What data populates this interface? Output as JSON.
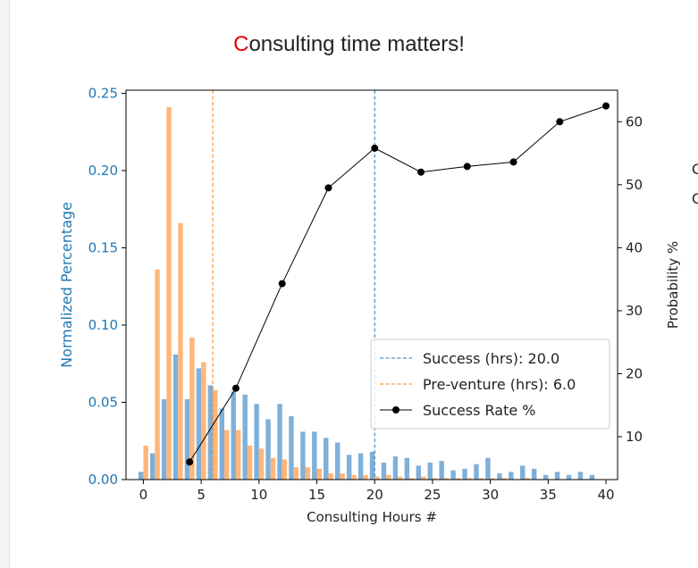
{
  "header": {
    "title_first_letter": "C",
    "title_rest": "onsulting time matters!",
    "clipped_text": [
      "C",
      "C"
    ]
  },
  "colors": {
    "success": "#7fb0d9",
    "preventure": "#ffb67a",
    "success_line": "#1f77b4",
    "preventure_line": "#ff7f0e",
    "rate": "#000000",
    "left_axis": "#1f77b4",
    "title_accent": "#e60000"
  },
  "chart_data": {
    "type": "bar",
    "title": "Consulting time matters!",
    "xlabel": "Consulting Hours #",
    "ylabel": "Normalized Percentage",
    "y2label": "Probability %",
    "xlim": [
      -1.5,
      41
    ],
    "ylim": [
      0,
      0.252
    ],
    "y2lim": [
      3.2,
      65
    ],
    "xticks": [
      "0",
      "5",
      "10",
      "15",
      "20",
      "25",
      "30",
      "35",
      "40"
    ],
    "yticks": [
      "0.00",
      "0.05",
      "0.10",
      "0.15",
      "0.20",
      "0.25"
    ],
    "y2ticks": [
      "10",
      "20",
      "30",
      "40",
      "50",
      "60"
    ],
    "grid": false,
    "legend_position": "lower-right",
    "legend": [
      "Success (hrs): 20.0",
      "Pre-venture (hrs): 6.0",
      "Success Rate %"
    ],
    "series": [
      {
        "name": "Success",
        "kind": "bar",
        "x": [
          0,
          1,
          2,
          3,
          4,
          5,
          6,
          7,
          8,
          9,
          10,
          11,
          12,
          13,
          14,
          15,
          16,
          17,
          18,
          19,
          20,
          21,
          22,
          23,
          24,
          25,
          26,
          27,
          28,
          29,
          30,
          31,
          32,
          33,
          34,
          35,
          36,
          37,
          38,
          39
        ],
        "values": [
          0.005,
          0.017,
          0.052,
          0.081,
          0.052,
          0.072,
          0.061,
          0.046,
          0.057,
          0.055,
          0.049,
          0.039,
          0.049,
          0.041,
          0.031,
          0.031,
          0.027,
          0.024,
          0.016,
          0.017,
          0.018,
          0.011,
          0.015,
          0.014,
          0.009,
          0.011,
          0.012,
          0.006,
          0.007,
          0.01,
          0.014,
          0.004,
          0.005,
          0.009,
          0.007,
          0.003,
          0.005,
          0.003,
          0.005,
          0.003
        ]
      },
      {
        "name": "Pre-venture",
        "kind": "bar",
        "x": [
          0,
          1,
          2,
          3,
          4,
          5,
          6,
          7,
          8,
          9,
          10,
          11,
          12,
          13,
          14,
          15,
          16,
          17,
          18,
          19,
          20,
          21,
          22,
          23,
          24,
          25,
          26,
          27,
          28,
          29,
          30,
          31,
          32,
          33,
          34,
          35,
          36,
          37,
          38,
          39
        ],
        "values": [
          0.022,
          0.136,
          0.241,
          0.166,
          0.092,
          0.076,
          0.058,
          0.032,
          0.032,
          0.022,
          0.02,
          0.014,
          0.013,
          0.008,
          0.008,
          0.007,
          0.004,
          0.004,
          0.003,
          0.003,
          0.002,
          0.003,
          0.002,
          0.001,
          0.002,
          0.001,
          0.001,
          0.001,
          0.001,
          0.001,
          0.001,
          0.001,
          0.0,
          0.001,
          0.0,
          0.0,
          0.0,
          0.0,
          0.0,
          0.0
        ]
      },
      {
        "name": "Success Rate %",
        "kind": "line",
        "axis": "right",
        "x": [
          4,
          8,
          12,
          16,
          20,
          24,
          28,
          32,
          36,
          40
        ],
        "values": [
          6.0,
          17.7,
          34.3,
          49.5,
          55.8,
          52.0,
          52.9,
          53.6,
          60.0,
          62.5
        ]
      }
    ],
    "vlines": [
      {
        "name": "Success (hrs): 20.0",
        "x": 20.0
      },
      {
        "name": "Pre-venture (hrs): 6.0",
        "x": 6.0
      }
    ]
  }
}
